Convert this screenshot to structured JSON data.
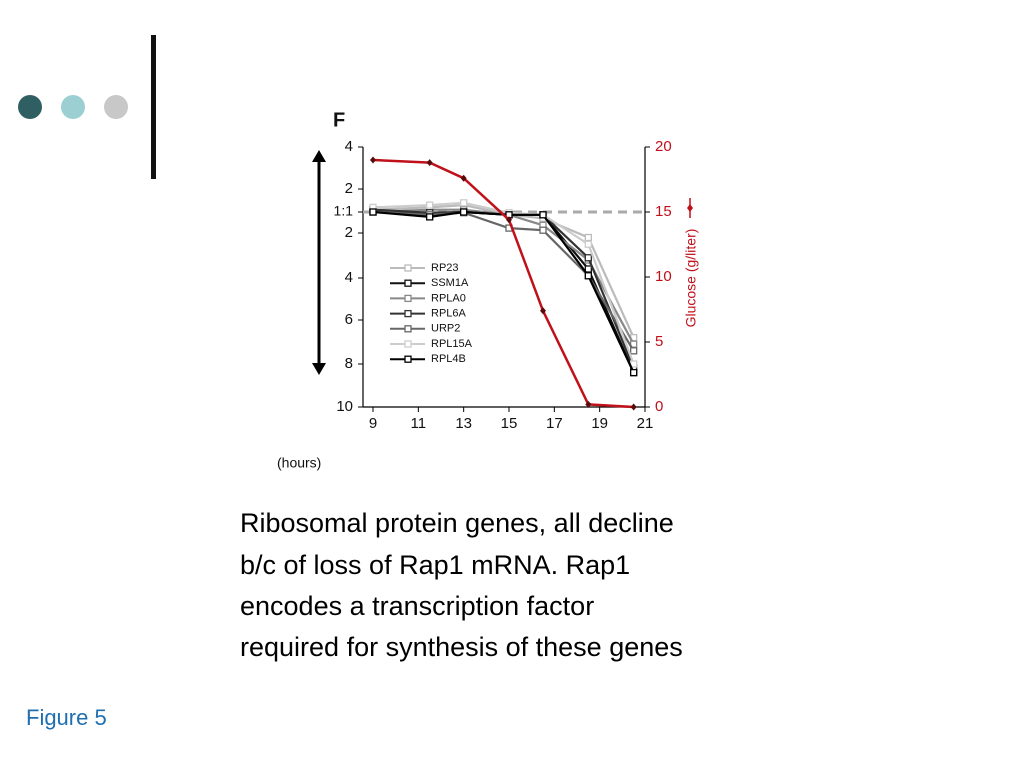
{
  "caption": [
    "Ribosomal protein genes, all decline",
    "b/c of loss of Rap1 mRNA.  Rap1",
    "encodes a transcription factor",
    "required for synthesis of these genes"
  ],
  "footer": "Figure 5",
  "chart_data": {
    "type": "line",
    "title": "F",
    "xlabel": "(hours)",
    "y2label": "Glucose (g/liter)",
    "x": [
      9,
      11.5,
      13,
      15,
      16.5,
      18.5,
      20.5
    ],
    "xlim": [
      8.5,
      21
    ],
    "xticks": [
      9,
      11,
      13,
      15,
      17,
      19,
      21
    ],
    "ylim": [
      4,
      -10
    ],
    "yticks": [
      4,
      2,
      {
        "value": 1,
        "label": "1:1"
      },
      {
        "value": -2,
        "label": "2"
      },
      {
        "value": -4,
        "label": "4"
      },
      {
        "value": -6,
        "label": "6"
      },
      {
        "value": -8,
        "label": "8"
      },
      {
        "value": -10,
        "label": "10"
      }
    ],
    "y2lim": [
      0,
      20
    ],
    "y2ticks": [
      0,
      5,
      10,
      15,
      20
    ],
    "series": [
      {
        "name": "RP23",
        "color": "#bbbbbb",
        "values": [
          1.1,
          1.2,
          1.3,
          0.6,
          0.1,
          -2.2,
          -6.8
        ]
      },
      {
        "name": "SSM1A",
        "color": "#111111",
        "values": [
          1.1,
          0.6,
          1,
          0.6,
          0.6,
          -3.6,
          -8.4
        ]
      },
      {
        "name": "RPLA0",
        "color": "#888888",
        "values": [
          1,
          1.1,
          1.1,
          0.6,
          -0.9,
          -3.2,
          -7.1
        ]
      },
      {
        "name": "RPL6A",
        "color": "#333333",
        "values": [
          1.1,
          0.9,
          1,
          0.6,
          0.6,
          -3.1,
          -8.2
        ]
      },
      {
        "name": "URP2",
        "color": "#666666",
        "values": [
          1,
          0.6,
          0.9,
          -1.3,
          -1.6,
          -3.9,
          -7.4
        ]
      },
      {
        "name": "RPL15A",
        "color": "#cccccc",
        "values": [
          1.2,
          1.3,
          1.4,
          0.9,
          0.6,
          -2.5,
          -8.0
        ]
      },
      {
        "name": "RPL4B",
        "color": "#000000",
        "values": [
          1,
          0.3,
          1,
          0.6,
          0.6,
          -3.9,
          -8.4
        ]
      },
      {
        "axis": "y2",
        "color": "#c0101a",
        "values": [
          19,
          18.8,
          17.6,
          14.4,
          7.4,
          0.2,
          0
        ]
      }
    ]
  }
}
